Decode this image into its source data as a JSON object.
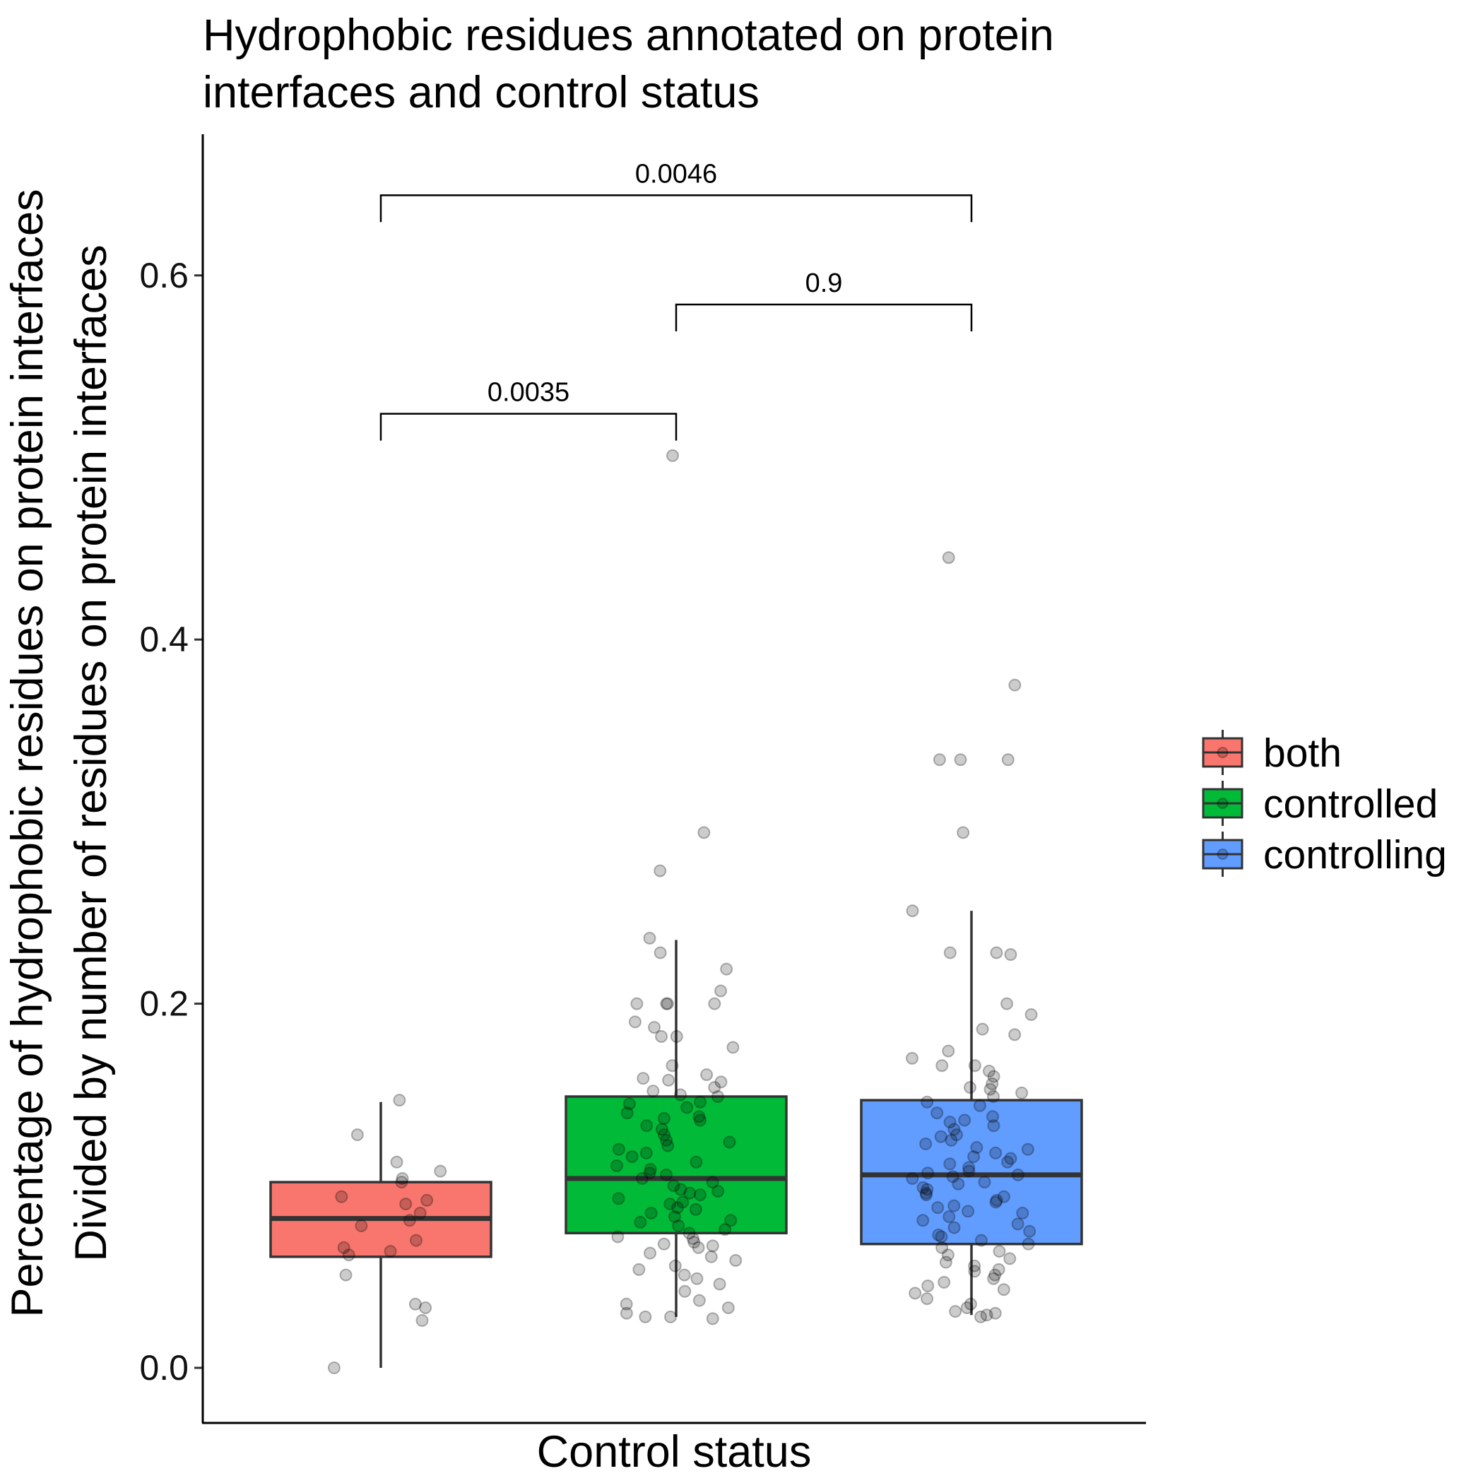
{
  "chart_data": {
    "type": "box",
    "title": "Hydrophobic residues annotated on protein interfaces and control status",
    "title_lines": [
      "Hydrophobic residues annotated on protein",
      "interfaces and control status"
    ],
    "xlabel": "Control status",
    "ylabel_lines": [
      "Percentage of hydrophobic residues on protein interfaces",
      "Divided by number of residues on protein interfaces"
    ],
    "ylim": [
      -0.032,
      0.68
    ],
    "yticks": [
      0.0,
      0.2,
      0.4,
      0.6
    ],
    "ytick_labels": [
      "0.0",
      "0.2",
      "0.4",
      "0.6"
    ],
    "grid": false,
    "legend_position": "right",
    "legend_title": "",
    "groups": [
      {
        "name": "both",
        "color": "#F8766D",
        "box": {
          "q1": 0.061,
          "median": 0.082,
          "q3": 0.102,
          "whisker_low": 0.0,
          "whisker_high": 0.146
        },
        "points": [
          0.147,
          0.128,
          0.113,
          0.108,
          0.104,
          0.102,
          0.094,
          0.092,
          0.09,
          0.085,
          0.081,
          0.078,
          0.07,
          0.066,
          0.064,
          0.062,
          0.051,
          0.035,
          0.033,
          0.026,
          0.0
        ]
      },
      {
        "name": "controlled",
        "color": "#00BA38",
        "box": {
          "q1": 0.074,
          "median": 0.104,
          "q3": 0.149,
          "whisker_low": 0.028,
          "whisker_high": 0.235
        },
        "points": [
          0.501,
          0.294,
          0.273,
          0.236,
          0.228,
          0.219,
          0.207,
          0.2,
          0.2,
          0.2,
          0.2,
          0.19,
          0.187,
          0.182,
          0.182,
          0.176,
          0.166,
          0.161,
          0.159,
          0.158,
          0.157,
          0.154,
          0.152,
          0.15,
          0.149,
          0.146,
          0.145,
          0.143,
          0.14,
          0.138,
          0.137,
          0.136,
          0.133,
          0.131,
          0.128,
          0.125,
          0.124,
          0.122,
          0.12,
          0.118,
          0.116,
          0.113,
          0.111,
          0.109,
          0.107,
          0.106,
          0.104,
          0.102,
          0.1,
          0.098,
          0.097,
          0.096,
          0.095,
          0.093,
          0.091,
          0.09,
          0.088,
          0.087,
          0.085,
          0.083,
          0.081,
          0.08,
          0.078,
          0.076,
          0.074,
          0.072,
          0.071,
          0.069,
          0.068,
          0.067,
          0.066,
          0.063,
          0.061,
          0.059,
          0.056,
          0.054,
          0.051,
          0.049,
          0.046,
          0.042,
          0.037,
          0.035,
          0.033,
          0.03,
          0.028,
          0.028,
          0.027
        ]
      },
      {
        "name": "controlling",
        "color": "#619CFF",
        "box": {
          "q1": 0.068,
          "median": 0.106,
          "q3": 0.147,
          "whisker_low": 0.029,
          "whisker_high": 0.251
        },
        "points": [
          0.445,
          0.375,
          0.334,
          0.334,
          0.334,
          0.294,
          0.251,
          0.228,
          0.228,
          0.227,
          0.2,
          0.194,
          0.186,
          0.183,
          0.174,
          0.17,
          0.166,
          0.166,
          0.163,
          0.16,
          0.156,
          0.154,
          0.153,
          0.151,
          0.149,
          0.146,
          0.144,
          0.14,
          0.138,
          0.136,
          0.135,
          0.133,
          0.131,
          0.128,
          0.127,
          0.125,
          0.123,
          0.121,
          0.12,
          0.118,
          0.116,
          0.115,
          0.113,
          0.112,
          0.11,
          0.108,
          0.107,
          0.106,
          0.105,
          0.104,
          0.102,
          0.101,
          0.099,
          0.098,
          0.096,
          0.095,
          0.094,
          0.092,
          0.091,
          0.089,
          0.088,
          0.086,
          0.085,
          0.083,
          0.081,
          0.079,
          0.077,
          0.075,
          0.073,
          0.072,
          0.07,
          0.068,
          0.066,
          0.064,
          0.062,
          0.06,
          0.058,
          0.056,
          0.054,
          0.053,
          0.051,
          0.049,
          0.047,
          0.045,
          0.043,
          0.041,
          0.038,
          0.035,
          0.033,
          0.031,
          0.03,
          0.029,
          0.028
        ]
      }
    ],
    "comparisons": [
      {
        "from": 0,
        "to": 1,
        "y": 0.524,
        "label": "0.0035"
      },
      {
        "from": 1,
        "to": 2,
        "y": 0.584,
        "label": "0.9"
      },
      {
        "from": 0,
        "to": 2,
        "y": 0.644,
        "label": "0.0046"
      }
    ]
  }
}
